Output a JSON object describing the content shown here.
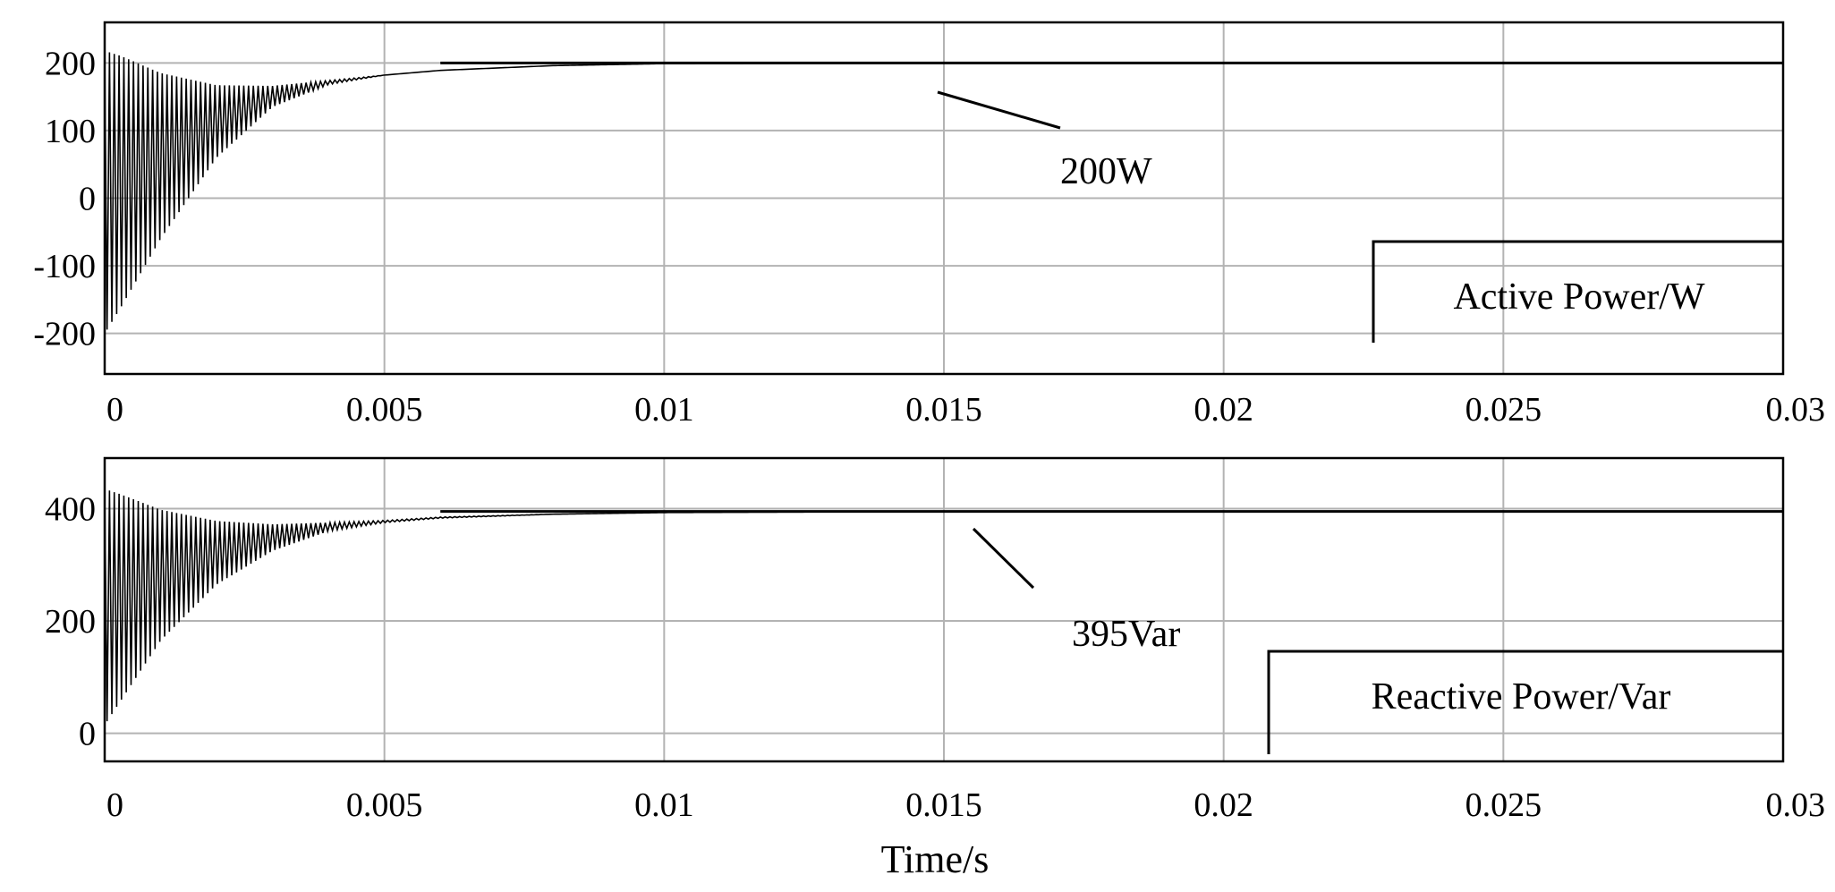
{
  "xlabel": "Time/s",
  "chart_data": [
    {
      "type": "line",
      "title": "",
      "xlabel": "",
      "ylabel": "",
      "xlim": [
        0,
        0.03
      ],
      "ylim": [
        -260,
        260
      ],
      "x_ticks": [
        "0",
        "0.005",
        "0.01",
        "0.015",
        "0.02",
        "0.025",
        "0.03"
      ],
      "x_tick_values": [
        0,
        0.005,
        0.01,
        0.015,
        0.02,
        0.025,
        0.03
      ],
      "y_ticks": [
        "200",
        "100",
        "0",
        "-100",
        "-200"
      ],
      "y_tick_values": [
        200,
        100,
        0,
        -100,
        -200
      ],
      "grid": true,
      "series": [
        {
          "name": "",
          "description_of_shape": "oscillating envelope",
          "x": [
            0,
            0.0003,
            0.001,
            0.002,
            0.003,
            0.004,
            0.005,
            0.006,
            0.008,
            0.01,
            0.015,
            0.02,
            0.025,
            0.03
          ],
          "upper": [
            218,
            210,
            185,
            167,
            166,
            174,
            182,
            189,
            196,
            199,
            200,
            200,
            200,
            200
          ],
          "lower": [
            -200,
            -160,
            -60,
            60,
            135,
            168,
            182,
            189,
            196,
            199,
            200,
            200,
            200,
            200
          ]
        }
      ],
      "annotation": {
        "text": "200W",
        "value": 200,
        "x": 0.0148
      },
      "legend_box": {
        "text": "Active Power/W"
      }
    },
    {
      "type": "line",
      "title": "",
      "xlabel": "Time/s",
      "ylabel": "",
      "xlim": [
        0,
        0.03
      ],
      "ylim": [
        -50,
        490
      ],
      "x_ticks": [
        "0",
        "0.005",
        "0.01",
        "0.015",
        "0.02",
        "0.025",
        "0.03"
      ],
      "x_tick_values": [
        0,
        0.005,
        0.01,
        0.015,
        0.02,
        0.025,
        0.03
      ],
      "y_ticks": [
        "400",
        "200",
        "0"
      ],
      "y_tick_values": [
        400,
        200,
        0
      ],
      "grid": true,
      "series": [
        {
          "name": "",
          "x": [
            0,
            0.0003,
            0.001,
            0.002,
            0.003,
            0.004,
            0.005,
            0.006,
            0.008,
            0.01,
            0.015,
            0.02,
            0.025,
            0.03
          ],
          "upper": [
            435,
            425,
            398,
            378,
            372,
            375,
            379,
            385,
            390,
            393,
            395,
            395,
            395,
            395
          ],
          "lower": [
            15,
            60,
            165,
            265,
            325,
            360,
            375,
            383,
            390,
            393,
            395,
            395,
            395,
            395
          ]
        }
      ],
      "annotation": {
        "text": "395Var",
        "value": 395,
        "x": 0.0155
      },
      "legend_box": {
        "text": "Reactive Power/Var"
      }
    }
  ]
}
